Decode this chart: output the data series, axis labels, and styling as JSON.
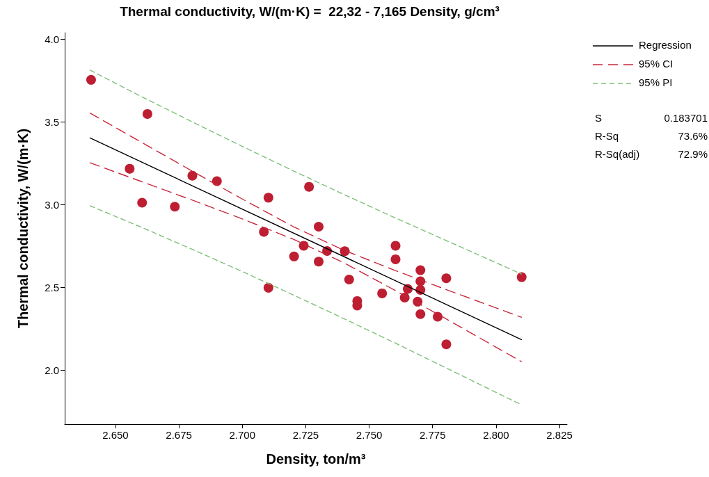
{
  "chart_data": {
    "type": "scatter",
    "title": "Thermal conductivity, W/(m·K) =  22,32 - 7,165 Density, g/cm³",
    "xlabel": "Density, ton/m³",
    "ylabel": "Thermal conductivity, W/(m·K)",
    "xlim": [
      2.63,
      2.828
    ],
    "ylim": [
      1.675,
      4.04
    ],
    "xticks": [
      {
        "value": 2.65,
        "label": "2.650"
      },
      {
        "value": 2.675,
        "label": "2.675"
      },
      {
        "value": 2.7,
        "label": "2.700"
      },
      {
        "value": 2.725,
        "label": "2.725"
      },
      {
        "value": 2.75,
        "label": "2.750"
      },
      {
        "value": 2.775,
        "label": "2.775"
      },
      {
        "value": 2.8,
        "label": "2.800"
      },
      {
        "value": 2.825,
        "label": "2.825"
      }
    ],
    "yticks": [
      {
        "value": 2,
        "label": "2.0"
      },
      {
        "value": 2.5,
        "label": "2.5"
      },
      {
        "value": 3,
        "label": "3.0"
      },
      {
        "value": 3.5,
        "label": "3.5"
      },
      {
        "value": 4,
        "label": "4.0"
      }
    ],
    "grid": false,
    "legend": "top right",
    "series": [
      {
        "color": "#be1e32",
        "marker": "circle",
        "x": [
          2.6404,
          2.6626,
          2.6556,
          2.6605,
          2.6734,
          2.6803,
          2.69,
          2.7103,
          2.7085,
          2.7263,
          2.7301,
          2.7242,
          2.7204,
          2.7334,
          2.7404,
          2.7301,
          2.7604,
          2.7604,
          2.7421,
          2.7103,
          2.7551,
          2.7453,
          2.7453,
          2.7652,
          2.764,
          2.7702,
          2.7702,
          2.7702,
          2.7804,
          2.8101,
          2.7691,
          2.7702,
          2.777,
          2.7804
        ],
        "values": [
          3.755,
          3.549,
          3.218,
          3.013,
          2.989,
          3.176,
          3.143,
          3.043,
          2.837,
          3.109,
          2.868,
          2.753,
          2.688,
          2.721,
          2.72,
          2.657,
          2.753,
          2.671,
          2.549,
          2.499,
          2.465,
          2.419,
          2.391,
          2.492,
          2.44,
          2.605,
          2.538,
          2.486,
          2.556,
          2.563,
          2.415,
          2.34,
          2.324,
          2.157
        ]
      },
      {
        "type": "line",
        "name": "Regression",
        "color": "#000000",
        "line_style": "solid",
        "marker": "none",
        "x": [
          2.64,
          2.81
        ],
        "values": [
          3.404,
          2.186
        ]
      },
      {
        "type": "line",
        "name": "95% CI",
        "color": "#c8283c",
        "line_style": "dashed",
        "marker": "none",
        "x": [
          2.64,
          2.66,
          2.68,
          2.7,
          2.72,
          2.74,
          2.76,
          2.78,
          2.81
        ],
        "values": [
          3.554,
          3.38,
          3.206,
          3.035,
          2.869,
          2.726,
          2.605,
          2.49,
          2.321
        ]
      },
      {
        "type": "line",
        "color": "#c8283c",
        "line_style": "dashed",
        "marker": "none",
        "x": [
          2.64,
          2.66,
          2.68,
          2.7,
          2.72,
          2.74,
          2.76,
          2.78,
          2.81
        ],
        "values": [
          3.254,
          3.142,
          3.03,
          2.915,
          2.793,
          2.65,
          2.485,
          2.314,
          2.053
        ]
      },
      {
        "type": "line",
        "name": "95% PI",
        "color": "#7fc07a",
        "line_style": "dotted",
        "marker": "none",
        "x": [
          2.64,
          2.66,
          2.68,
          2.7,
          2.72,
          2.74,
          2.76,
          2.78,
          2.81
        ],
        "values": [
          3.814,
          3.656,
          3.503,
          3.353,
          3.206,
          3.063,
          2.923,
          2.787,
          2.582
        ]
      },
      {
        "type": "line",
        "color": "#7fc07a",
        "line_style": "dotted",
        "marker": "none",
        "x": [
          2.64,
          2.66,
          2.68,
          2.7,
          2.72,
          2.74,
          2.76,
          2.78,
          2.81
        ],
        "values": [
          2.994,
          2.866,
          2.733,
          2.597,
          2.456,
          2.313,
          2.167,
          2.017,
          1.792
        ]
      }
    ],
    "annotations": [
      "S",
      "0.183701",
      "R-Sq",
      "73.6%",
      "R-Sq(adj)",
      "72.9%"
    ]
  }
}
